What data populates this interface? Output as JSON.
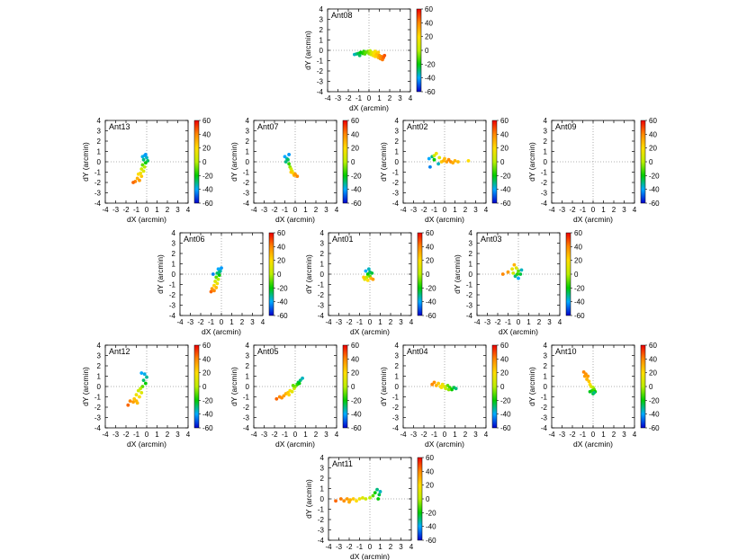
{
  "chart_data": {
    "type": "scatter",
    "description_axes": "pointing offsets per antenna, color = temperature scale",
    "shared": {
      "xlabel": "dX (arcmin)",
      "ylabel": "dY (arcmin)",
      "xlim": [
        -4,
        4
      ],
      "ylim": [
        -4,
        4
      ],
      "xticks": [
        "-4",
        "-3",
        "-2",
        "-1",
        "0",
        "1",
        "2",
        "3",
        "4"
      ],
      "yticks": [
        "4",
        "3",
        "2",
        "1",
        "0",
        "-1",
        "-2",
        "-3",
        "-4"
      ],
      "colorbar_ticks": [
        "60",
        "40",
        "20",
        "0",
        "-20",
        "-40",
        "-60"
      ],
      "colorbar_range": [
        -60,
        60
      ],
      "colors": [
        "#0000cc",
        "#00aaff",
        "#00cc00",
        "#bbee00",
        "#ffdd00",
        "#ff8800",
        "#ee0000"
      ]
    },
    "panels": [
      {
        "name": "Ant08",
        "points": [
          [
            -1.4,
            -0.4,
            -35
          ],
          [
            -1.2,
            -0.35,
            -30
          ],
          [
            -1.0,
            -0.3,
            -25
          ],
          [
            -0.9,
            -0.5,
            -28
          ],
          [
            -0.8,
            -0.2,
            -20
          ],
          [
            -0.6,
            -0.3,
            -18
          ],
          [
            -0.5,
            -0.1,
            -15
          ],
          [
            -0.4,
            -0.35,
            -12
          ],
          [
            -0.3,
            -0.2,
            -10
          ],
          [
            -0.1,
            -0.1,
            -8
          ],
          [
            0.0,
            -0.3,
            -5
          ],
          [
            0.1,
            -0.05,
            0
          ],
          [
            0.2,
            -0.4,
            5
          ],
          [
            0.3,
            -0.2,
            10
          ],
          [
            0.4,
            -0.5,
            15
          ],
          [
            0.5,
            -0.3,
            20
          ],
          [
            0.6,
            -0.6,
            22
          ],
          [
            0.7,
            -0.45,
            25
          ],
          [
            0.8,
            -0.3,
            28
          ],
          [
            0.9,
            -0.7,
            30
          ],
          [
            1.0,
            -0.5,
            35
          ],
          [
            1.1,
            -0.8,
            38
          ],
          [
            1.2,
            -0.6,
            40
          ],
          [
            1.3,
            -0.9,
            42
          ],
          [
            1.4,
            -0.7,
            45
          ],
          [
            1.5,
            -0.5,
            48
          ],
          [
            0.6,
            -0.1,
            18
          ],
          [
            0.9,
            -0.2,
            24
          ]
        ]
      },
      {
        "name": "Ant13",
        "points": [
          [
            -0.2,
            0.6,
            -40
          ],
          [
            0.0,
            0.4,
            -35
          ],
          [
            -0.3,
            0.2,
            -30
          ],
          [
            0.1,
            0.1,
            -28
          ],
          [
            -0.1,
            -0.1,
            -20
          ],
          [
            -0.4,
            -0.3,
            -10
          ],
          [
            -0.2,
            -0.5,
            0
          ],
          [
            -0.5,
            -0.7,
            5
          ],
          [
            -0.3,
            -0.9,
            10
          ],
          [
            -0.6,
            -1.1,
            15
          ],
          [
            -0.8,
            -1.2,
            20
          ],
          [
            -0.5,
            -1.4,
            25
          ],
          [
            -0.9,
            -1.6,
            30
          ],
          [
            -0.7,
            -1.8,
            35
          ],
          [
            -1.1,
            -1.9,
            40
          ],
          [
            -1.3,
            -2.0,
            45
          ],
          [
            -0.4,
            0.5,
            -38
          ],
          [
            -0.1,
            0.7,
            -42
          ]
        ]
      },
      {
        "name": "Ant07",
        "points": [
          [
            -1.0,
            0.5,
            -40
          ],
          [
            -0.8,
            0.3,
            -35
          ],
          [
            -0.9,
            0.0,
            -30
          ],
          [
            -0.7,
            0.2,
            -28
          ],
          [
            -0.6,
            -0.2,
            -15
          ],
          [
            -0.5,
            -0.5,
            -5
          ],
          [
            -0.4,
            -0.7,
            5
          ],
          [
            -0.3,
            -0.9,
            10
          ],
          [
            -0.2,
            -1.1,
            20
          ],
          [
            -0.1,
            -1.3,
            30
          ],
          [
            0.0,
            -1.2,
            35
          ],
          [
            0.2,
            -1.4,
            40
          ],
          [
            -0.4,
            -1.0,
            25
          ],
          [
            -0.6,
            0.7,
            -42
          ]
        ]
      },
      {
        "name": "Ant02",
        "points": [
          [
            -1.5,
            0.3,
            -40
          ],
          [
            -1.2,
            0.5,
            -30
          ],
          [
            -1.0,
            0.2,
            -20
          ],
          [
            -0.8,
            0.8,
            15
          ],
          [
            -0.5,
            0.4,
            10
          ],
          [
            -0.3,
            0.0,
            25
          ],
          [
            -0.1,
            0.1,
            30
          ],
          [
            0.2,
            0.0,
            35
          ],
          [
            0.4,
            0.2,
            40
          ],
          [
            0.6,
            0.0,
            38
          ],
          [
            0.8,
            -0.1,
            32
          ],
          [
            1.0,
            0.1,
            30
          ],
          [
            1.3,
            0.0,
            28
          ],
          [
            2.3,
            0.1,
            20
          ],
          [
            -1.4,
            -0.5,
            -45
          ],
          [
            -0.6,
            -0.2,
            -35
          ],
          [
            -1.0,
            0.6,
            5
          ],
          [
            0.0,
            0.3,
            28
          ]
        ]
      },
      {
        "name": "Ant09",
        "points": []
      },
      {
        "name": "Ant06",
        "points": [
          [
            -0.8,
            0.0,
            -45
          ],
          [
            -0.3,
            0.5,
            -40
          ],
          [
            -0.1,
            0.3,
            -35
          ],
          [
            -0.4,
            0.1,
            -28
          ],
          [
            -0.2,
            -0.1,
            -20
          ],
          [
            -0.5,
            -0.3,
            -10
          ],
          [
            -0.3,
            -0.5,
            0
          ],
          [
            -0.6,
            -0.7,
            8
          ],
          [
            -0.4,
            -0.9,
            15
          ],
          [
            -0.7,
            -1.1,
            22
          ],
          [
            -0.5,
            -1.3,
            28
          ],
          [
            -0.9,
            -1.4,
            35
          ],
          [
            -0.7,
            -1.6,
            40
          ],
          [
            -1.0,
            -1.7,
            45
          ],
          [
            0.0,
            0.6,
            -42
          ],
          [
            -0.2,
            0.2,
            -30
          ]
        ]
      },
      {
        "name": "Ant01",
        "points": [
          [
            -0.4,
            0.3,
            -40
          ],
          [
            -0.1,
            0.5,
            -35
          ],
          [
            -0.2,
            0.0,
            -20
          ],
          [
            0.0,
            -0.2,
            -10
          ],
          [
            -0.3,
            -0.3,
            0
          ],
          [
            -0.5,
            -0.5,
            10
          ],
          [
            -0.2,
            -0.6,
            20
          ],
          [
            0.1,
            -0.4,
            30
          ],
          [
            0.3,
            -0.5,
            35
          ],
          [
            -0.6,
            -0.3,
            25
          ],
          [
            0.0,
            0.2,
            -28
          ],
          [
            0.2,
            0.1,
            -25
          ]
        ]
      },
      {
        "name": "Ant03",
        "points": [
          [
            -1.5,
            0.0,
            40
          ],
          [
            -1.0,
            0.2,
            35
          ],
          [
            -0.6,
            0.5,
            15
          ],
          [
            -0.4,
            0.9,
            30
          ],
          [
            -0.2,
            0.6,
            10
          ],
          [
            0.0,
            0.3,
            -10
          ],
          [
            0.2,
            0.0,
            -25
          ],
          [
            -0.3,
            -0.2,
            -30
          ],
          [
            0.0,
            -0.4,
            -40
          ],
          [
            0.3,
            0.4,
            -35
          ],
          [
            -0.5,
            0.1,
            5
          ],
          [
            -0.1,
            0.0,
            -15
          ]
        ]
      },
      {
        "name": "Ant12",
        "points": [
          [
            -0.5,
            1.3,
            -40
          ],
          [
            -0.2,
            1.2,
            -38
          ],
          [
            0.0,
            0.9,
            -32
          ],
          [
            -0.3,
            0.6,
            -28
          ],
          [
            -0.1,
            0.3,
            -20
          ],
          [
            -0.4,
            0.0,
            -10
          ],
          [
            -0.6,
            -0.2,
            0
          ],
          [
            -0.8,
            -0.4,
            5
          ],
          [
            -0.5,
            -0.6,
            10
          ],
          [
            -1.0,
            -0.8,
            15
          ],
          [
            -0.7,
            -1.0,
            20
          ],
          [
            -1.2,
            -1.2,
            25
          ],
          [
            -1.0,
            -1.4,
            30
          ],
          [
            -1.3,
            -1.5,
            35
          ],
          [
            -1.6,
            -1.4,
            40
          ],
          [
            -1.8,
            -1.8,
            45
          ],
          [
            -0.9,
            -1.6,
            28
          ]
        ]
      },
      {
        "name": "Ant05",
        "points": [
          [
            -1.8,
            -1.2,
            45
          ],
          [
            -1.5,
            -1.0,
            40
          ],
          [
            -1.3,
            -1.1,
            38
          ],
          [
            -1.1,
            -0.9,
            35
          ],
          [
            -0.9,
            -0.7,
            30
          ],
          [
            -0.7,
            -0.6,
            25
          ],
          [
            -0.5,
            -0.4,
            18
          ],
          [
            -0.3,
            -0.5,
            12
          ],
          [
            -0.1,
            -0.2,
            5
          ],
          [
            0.0,
            0.0,
            -5
          ],
          [
            0.2,
            0.2,
            -15
          ],
          [
            0.3,
            0.4,
            -25
          ],
          [
            0.5,
            0.6,
            -30
          ],
          [
            0.7,
            0.8,
            -35
          ],
          [
            0.4,
            0.3,
            -20
          ],
          [
            -0.2,
            0.1,
            -10
          ],
          [
            -0.6,
            -0.8,
            22
          ]
        ]
      },
      {
        "name": "Ant04",
        "points": [
          [
            -1.2,
            0.2,
            40
          ],
          [
            -1.0,
            0.4,
            38
          ],
          [
            -0.8,
            0.1,
            30
          ],
          [
            -0.6,
            0.3,
            25
          ],
          [
            -0.4,
            0.0,
            20
          ],
          [
            -0.2,
            0.2,
            15
          ],
          [
            0.0,
            0.0,
            10
          ],
          [
            0.1,
            -0.2,
            0
          ],
          [
            0.3,
            0.1,
            -10
          ],
          [
            0.5,
            -0.1,
            -15
          ],
          [
            0.7,
            -0.3,
            -20
          ],
          [
            0.9,
            -0.1,
            -25
          ],
          [
            1.1,
            -0.2,
            -30
          ],
          [
            0.4,
            -0.3,
            -5
          ],
          [
            -0.3,
            -0.1,
            18
          ]
        ]
      },
      {
        "name": "Ant10",
        "points": [
          [
            -0.9,
            1.4,
            40
          ],
          [
            -0.7,
            1.2,
            38
          ],
          [
            -0.5,
            1.0,
            35
          ],
          [
            -0.6,
            0.7,
            30
          ],
          [
            -0.4,
            0.5,
            25
          ],
          [
            -0.3,
            0.2,
            20
          ],
          [
            -0.2,
            0.0,
            10
          ],
          [
            0.0,
            -0.1,
            0
          ],
          [
            0.1,
            -0.3,
            -10
          ],
          [
            -0.1,
            -0.4,
            -15
          ],
          [
            0.2,
            -0.5,
            -20
          ],
          [
            0.0,
            -0.7,
            -25
          ],
          [
            0.1,
            -0.6,
            -30
          ],
          [
            -0.3,
            -0.5,
            -22
          ],
          [
            -0.8,
            1.0,
            35
          ]
        ]
      },
      {
        "name": "Ant11",
        "points": [
          [
            -3.3,
            -0.2,
            45
          ],
          [
            -2.8,
            0.0,
            42
          ],
          [
            -2.5,
            -0.2,
            38
          ],
          [
            -2.2,
            0.0,
            35
          ],
          [
            -1.9,
            -0.1,
            30
          ],
          [
            -1.6,
            0.0,
            25
          ],
          [
            -1.3,
            -0.2,
            20
          ],
          [
            -1.0,
            0.0,
            15
          ],
          [
            -0.7,
            0.1,
            10
          ],
          [
            -0.4,
            0.0,
            5
          ],
          [
            0.0,
            0.1,
            0
          ],
          [
            0.3,
            0.3,
            -10
          ],
          [
            0.5,
            0.6,
            -20
          ],
          [
            0.7,
            0.9,
            -30
          ],
          [
            0.9,
            0.4,
            -25
          ],
          [
            0.8,
            0.0,
            -20
          ],
          [
            1.0,
            0.7,
            -35
          ],
          [
            -2.0,
            -0.3,
            32
          ]
        ]
      }
    ]
  }
}
